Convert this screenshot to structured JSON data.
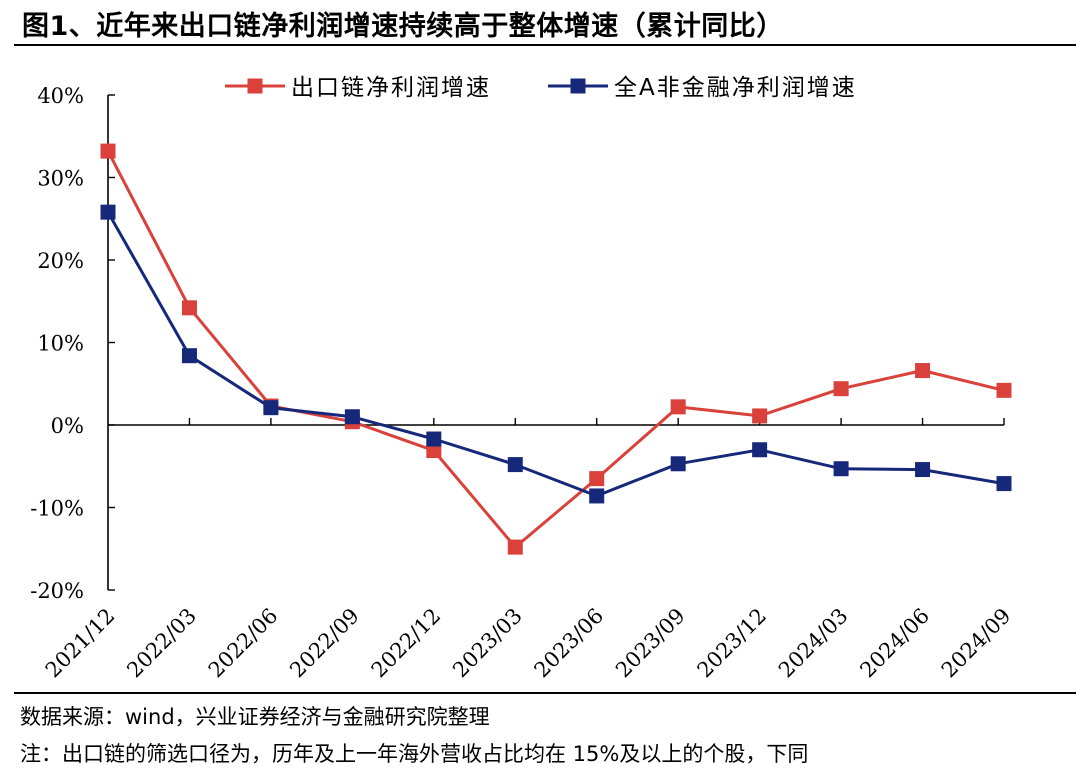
{
  "figure": {
    "title": "图1、近年来出口链净利润增速持续高于整体增速（累计同比）",
    "source_note": "数据来源：wind，兴业证券经济与金融研究院整理",
    "remark": "注：出口链的筛选口径为，历年及上一年海外营收占比均在 15%及以上的个股，下同"
  },
  "chart_data": {
    "type": "line",
    "x": [
      "2021/12",
      "2022/03",
      "2022/06",
      "2022/09",
      "2022/12",
      "2023/03",
      "2023/06",
      "2023/09",
      "2023/12",
      "2024/03",
      "2024/06",
      "2024/09"
    ],
    "series": [
      {
        "name": "出口链净利润增速",
        "color": "#d9413a",
        "values": [
          33.2,
          14.2,
          2.3,
          0.4,
          -3.1,
          -14.8,
          -6.5,
          2.2,
          1.1,
          4.4,
          6.6,
          4.2
        ]
      },
      {
        "name": "全A非金融净利润增速",
        "color": "#16287a",
        "values": [
          25.8,
          8.4,
          2.1,
          1.0,
          -1.7,
          -4.8,
          -8.6,
          -4.7,
          -3.0,
          -5.3,
          -5.4,
          -7.1
        ]
      }
    ],
    "ylim": [
      -20,
      40
    ],
    "yticks": [
      -20,
      -10,
      0,
      10,
      20,
      30,
      40
    ],
    "ytick_labels": [
      "-20%",
      "-10%",
      "0%",
      "10%",
      "20%",
      "30%",
      "40%"
    ],
    "legend": "top",
    "grid": false,
    "xlabel": "",
    "ylabel": ""
  }
}
